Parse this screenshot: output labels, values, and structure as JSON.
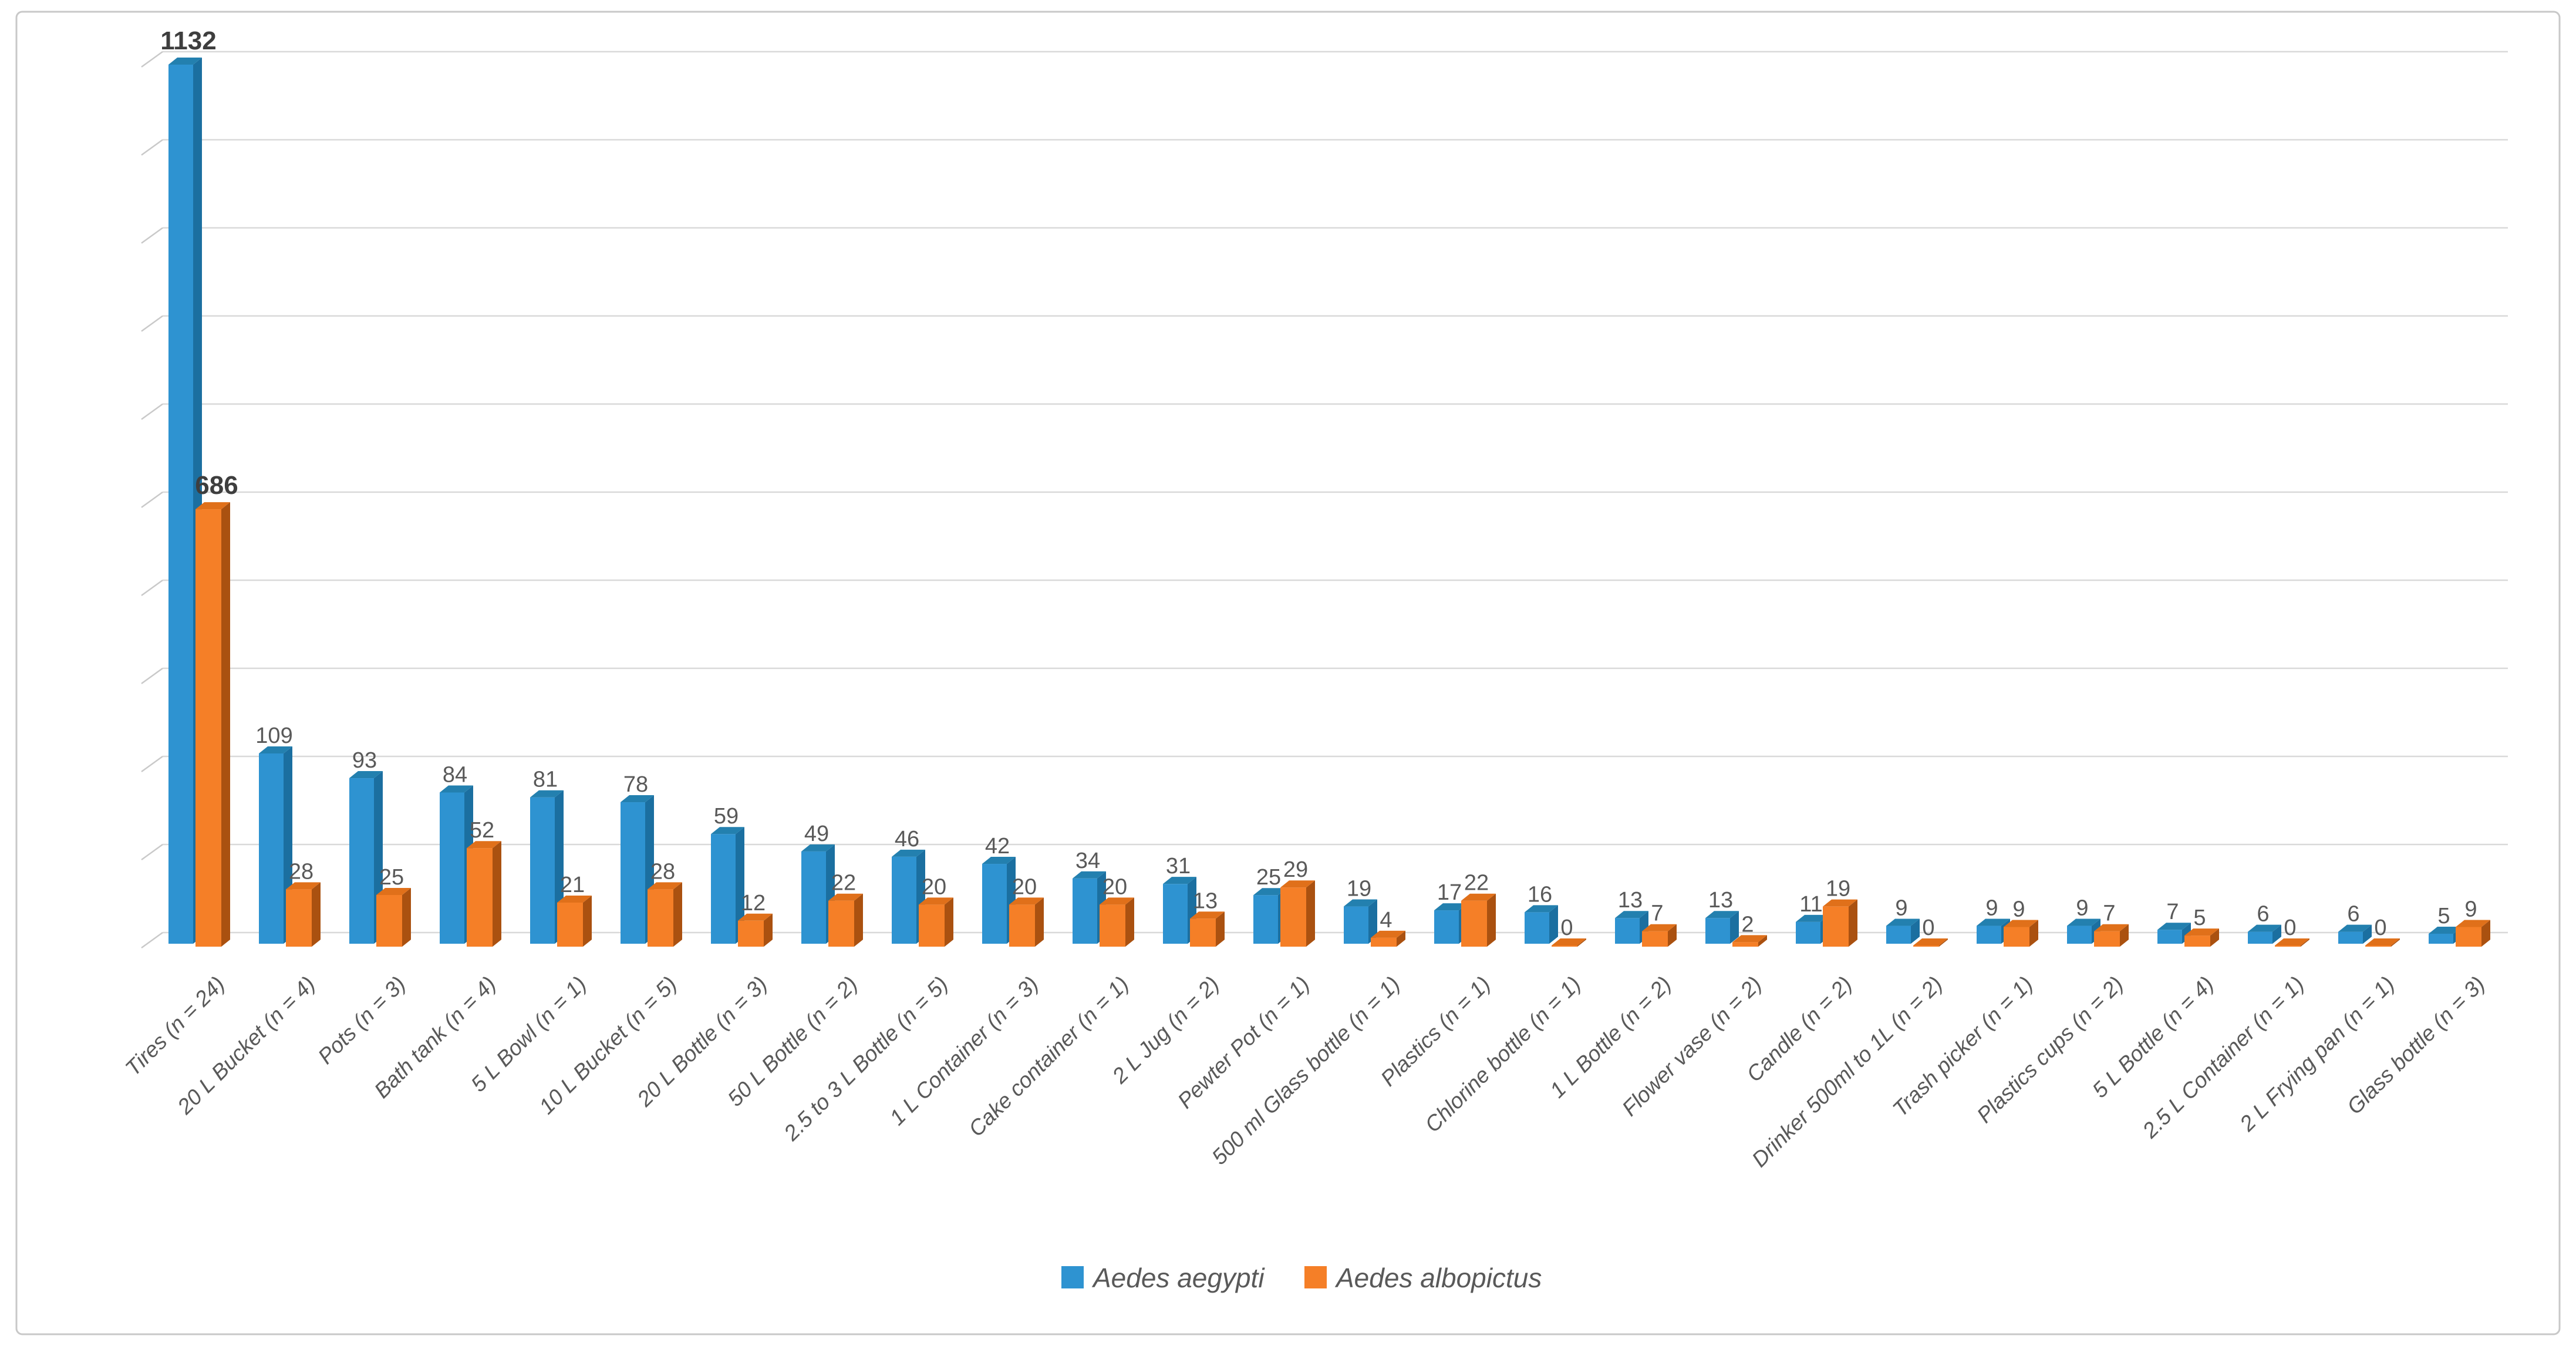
{
  "figure": {
    "background": "#FFFFFF",
    "border_color": "#C8C8C8"
  },
  "chart_data": {
    "type": "bar",
    "subtype": "3d-clustered-column",
    "title": "",
    "xlabel": "",
    "ylabel": "",
    "ylim": [
      0,
      1200
    ],
    "gridline_step": 100,
    "y_axis_tick_labels_visible": false,
    "grid": true,
    "gridline_color": "#D9D9D9",
    "tick_color": "#C9C9C9",
    "label_color": "#595959",
    "first_label_color": "#3E3E3E",
    "data_labels": "outside-end",
    "first_category_labels_bold": true,
    "legend_position": "bottom-center",
    "categories": [
      "Tires (n = 24)",
      "20 L Bucket (n = 4)",
      "Pots (n = 3)",
      "Bath tank (n = 4)",
      "5 L Bowl (n = 1)",
      "10 L Bucket (n = 5)",
      "20 L Bottle (n = 3)",
      "50 L Bottle (n = 2)",
      "2.5 to 3 L Bottle (n = 5)",
      "1 L Container (n = 3)",
      "Cake container (n = 1)",
      "2 L Jug (n = 2)",
      "Pewter Pot (n = 1)",
      "500 ml Glass bottle (n = 1)",
      "Plastics (n = 1)",
      "Chlorine bottle (n = 1)",
      "1 L Bottle (n = 2)",
      "Flower vase (n = 2)",
      "Candle (n = 2)",
      "Drinker 500ml to 1L (n = 2)",
      "Trash picker (n = 1)",
      "Plastics cups (n = 2)",
      "5 L Bottle (n = 4)",
      "2.5 L Container (n = 1)",
      "2 L Frying pan (n = 1)",
      "Glass bottle (n = 3)"
    ],
    "series": [
      {
        "name": "Aedes aegypti",
        "color": "#2E93D1",
        "shade_side": "#1B6FA0",
        "shade_top": "#2380AF",
        "values": [
          1132,
          109,
          93,
          84,
          81,
          78,
          59,
          49,
          46,
          42,
          34,
          31,
          25,
          19,
          17,
          16,
          13,
          13,
          11,
          9,
          9,
          9,
          7,
          6,
          6,
          5
        ]
      },
      {
        "name": "Aedes albopictus",
        "color": "#F57F27",
        "shade_side": "#AA5110",
        "shade_top": "#E0701A",
        "values": [
          686,
          28,
          25,
          52,
          21,
          28,
          12,
          22,
          20,
          20,
          20,
          13,
          29,
          4,
          22,
          0,
          7,
          2,
          19,
          0,
          9,
          7,
          5,
          0,
          0,
          9
        ]
      }
    ]
  }
}
